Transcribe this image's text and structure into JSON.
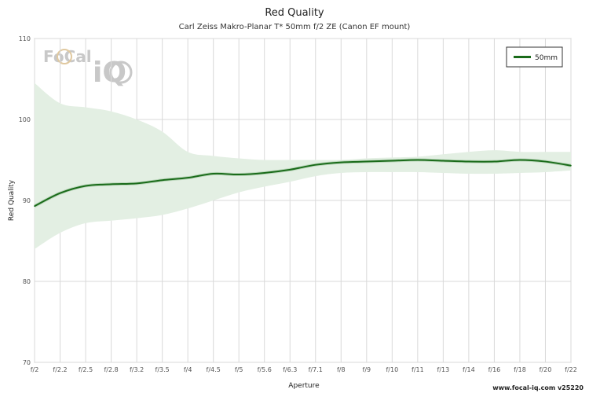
{
  "chart_data": {
    "type": "line",
    "title": "Red Quality",
    "subtitle": "Carl Zeiss Makro-Planar T* 50mm f/2 ZE (Canon EF mount)",
    "xlabel": "Aperture",
    "ylabel": "Red Quality",
    "ylim": [
      70,
      110
    ],
    "yticks": [
      70,
      80,
      90,
      100,
      110
    ],
    "categories": [
      "f/2",
      "f/2.2",
      "f/2.5",
      "f/2.8",
      "f/3.2",
      "f/3.5",
      "f/4",
      "f/4.5",
      "f/5",
      "f/5.6",
      "f/6.3",
      "f/7.1",
      "f/8",
      "f/9",
      "f/10",
      "f/11",
      "f/13",
      "f/14",
      "f/16",
      "f/18",
      "f/20",
      "f/22"
    ],
    "series": [
      {
        "name": "50mm",
        "color": "#1a6b1a",
        "values": [
          89.3,
          90.9,
          91.8,
          92.0,
          92.1,
          92.5,
          92.8,
          93.3,
          93.2,
          93.4,
          93.8,
          94.4,
          94.7,
          94.8,
          94.9,
          95.0,
          94.9,
          94.8,
          94.8,
          95.0,
          94.8,
          94.3
        ],
        "band_upper": [
          104.5,
          102.0,
          101.5,
          101.0,
          100.0,
          98.5,
          96.0,
          95.5,
          95.2,
          95.0,
          95.0,
          95.0,
          95.0,
          95.2,
          95.3,
          95.4,
          95.7,
          96.0,
          96.2,
          96.0,
          96.0,
          96.0
        ],
        "band_lower": [
          84.0,
          86.0,
          87.2,
          87.5,
          87.8,
          88.2,
          89.0,
          90.0,
          91.0,
          91.7,
          92.3,
          93.0,
          93.4,
          93.5,
          93.5,
          93.5,
          93.4,
          93.3,
          93.3,
          93.4,
          93.5,
          93.7
        ],
        "band_color": "#e3efe3"
      }
    ],
    "grid": true,
    "legend_position": "top-right"
  },
  "branding": {
    "logo_text_top": "FoCal",
    "logo_text_bottom": "iQ",
    "credit": "www.focal-iq.com  v25220"
  }
}
